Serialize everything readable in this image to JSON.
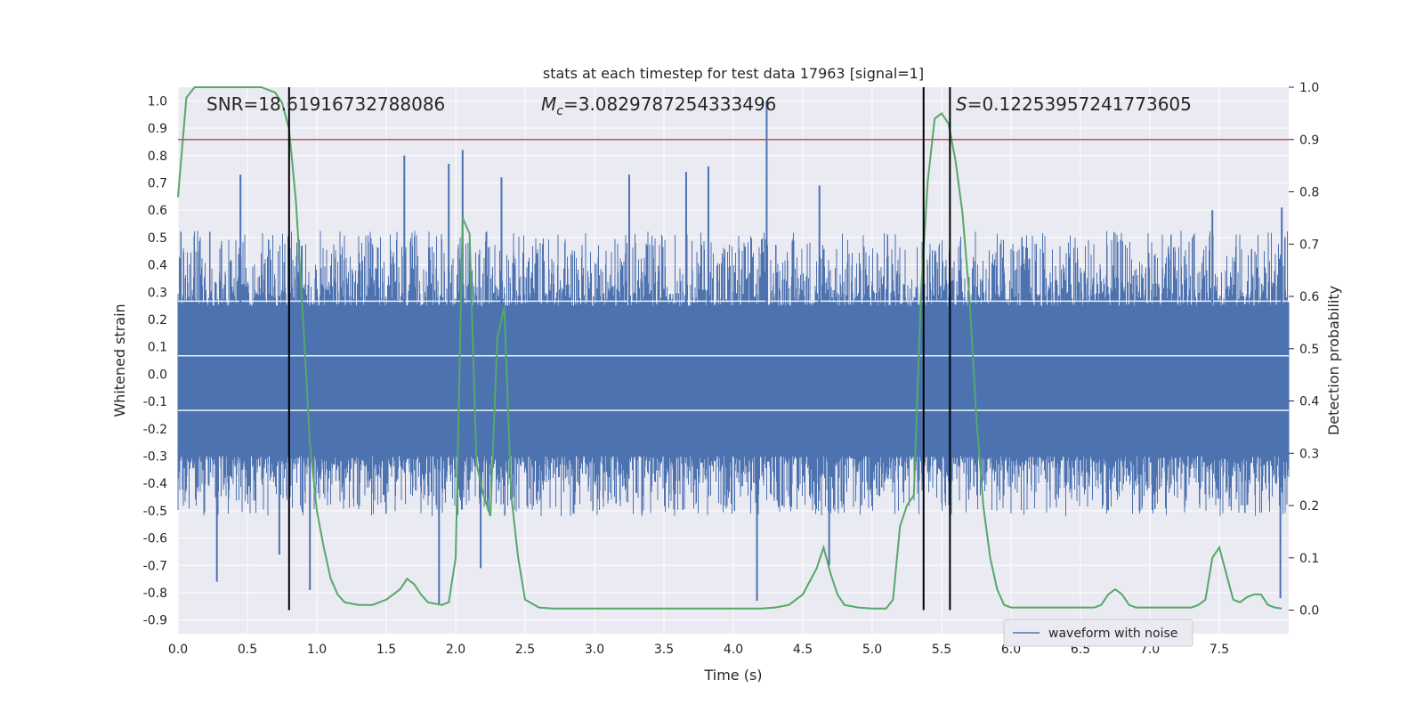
{
  "chart_data": {
    "type": "line",
    "title": "stats at each timestep for test data 17963 [signal=1]",
    "xlabel": "Time (s)",
    "ylabel_left": "Whitened strain",
    "ylabel_right": "Detection probability",
    "xlim": [
      0.0,
      8.0
    ],
    "ylim_left": [
      -0.95,
      1.05
    ],
    "ylim_right": [
      -0.045,
      1.0
    ],
    "x_ticks": [
      "0.0",
      "0.5",
      "1.0",
      "1.5",
      "2.0",
      "2.5",
      "3.0",
      "3.5",
      "4.0",
      "4.5",
      "5.0",
      "5.5",
      "6.0",
      "6.5",
      "7.0",
      "7.5"
    ],
    "y_ticks_left": [
      "1.0",
      "0.9",
      "0.8",
      "0.7",
      "0.6",
      "0.5",
      "0.4",
      "0.3",
      "0.2",
      "0.1",
      "0.0",
      "-0.1",
      "-0.2",
      "-0.3",
      "-0.4",
      "-0.5",
      "-0.6",
      "-0.7",
      "-0.8",
      "-0.9"
    ],
    "y_ticks_right": [
      "1.0",
      "0.9",
      "0.8",
      "0.7",
      "0.6",
      "0.5",
      "0.4",
      "0.3",
      "0.2",
      "0.1",
      "0.0"
    ],
    "annotations": {
      "snr": "SNR=18.61916732788086",
      "mc_symbol": "M",
      "mc_sub": "c",
      "mc_value": "=3.0829787254333496",
      "s_symbol": "S",
      "s_value": "=0.12253957241773605"
    },
    "legend": [
      {
        "label": "waveform with noise",
        "color": "#4c72b0"
      }
    ],
    "threshold": {
      "axis": "right",
      "value": 0.9,
      "color": "#c44e52"
    },
    "vertical_lines": [
      0.8,
      5.37,
      5.56
    ],
    "waveform": {
      "name": "waveform with noise",
      "color": "#4c72b0",
      "band": [
        -0.3,
        0.25
      ],
      "envelope": [
        -0.5,
        0.5
      ],
      "spikes": [
        {
          "x": 0.28,
          "y": -0.76
        },
        {
          "x": 0.45,
          "y": 0.73
        },
        {
          "x": 0.73,
          "y": -0.66
        },
        {
          "x": 0.95,
          "y": -0.79
        },
        {
          "x": 1.63,
          "y": 0.8
        },
        {
          "x": 1.88,
          "y": -0.84
        },
        {
          "x": 1.95,
          "y": 0.77
        },
        {
          "x": 2.05,
          "y": 0.82
        },
        {
          "x": 2.18,
          "y": -0.71
        },
        {
          "x": 2.33,
          "y": 0.72
        },
        {
          "x": 3.25,
          "y": 0.73
        },
        {
          "x": 3.66,
          "y": 0.74
        },
        {
          "x": 3.82,
          "y": 0.76
        },
        {
          "x": 4.17,
          "y": -0.83
        },
        {
          "x": 4.24,
          "y": 1.0
        },
        {
          "x": 4.62,
          "y": 0.69
        },
        {
          "x": 4.69,
          "y": -0.7
        },
        {
          "x": 7.45,
          "y": 0.6
        },
        {
          "x": 7.94,
          "y": -0.82
        },
        {
          "x": 7.95,
          "y": 0.61
        }
      ]
    },
    "probability": {
      "name": "detection probability",
      "color": "#55a868",
      "x": [
        0.0,
        0.06,
        0.12,
        0.2,
        0.3,
        0.4,
        0.5,
        0.6,
        0.7,
        0.75,
        0.8,
        0.85,
        0.9,
        0.95,
        1.0,
        1.05,
        1.1,
        1.15,
        1.2,
        1.3,
        1.4,
        1.45,
        1.5,
        1.55,
        1.6,
        1.65,
        1.7,
        1.75,
        1.8,
        1.9,
        1.95,
        2.0,
        2.05,
        2.1,
        2.15,
        2.2,
        2.25,
        2.3,
        2.35,
        2.4,
        2.45,
        2.5,
        2.6,
        2.7,
        2.8,
        3.0,
        3.2,
        3.4,
        3.6,
        3.8,
        4.0,
        4.2,
        4.3,
        4.4,
        4.5,
        4.6,
        4.65,
        4.7,
        4.75,
        4.8,
        4.9,
        5.0,
        5.1,
        5.15,
        5.2,
        5.25,
        5.3,
        5.35,
        5.4,
        5.45,
        5.5,
        5.55,
        5.6,
        5.65,
        5.7,
        5.75,
        5.8,
        5.85,
        5.9,
        5.95,
        6.0,
        6.1,
        6.2,
        6.3,
        6.4,
        6.5,
        6.6,
        6.65,
        6.7,
        6.75,
        6.8,
        6.85,
        6.9,
        7.0,
        7.1,
        7.2,
        7.3,
        7.35,
        7.4,
        7.45,
        7.5,
        7.55,
        7.6,
        7.65,
        7.7,
        7.75,
        7.8,
        7.85,
        7.9,
        7.95
      ],
      "y": [
        0.79,
        0.98,
        1.0,
        1.0,
        1.0,
        1.0,
        1.0,
        1.0,
        0.99,
        0.97,
        0.92,
        0.78,
        0.56,
        0.32,
        0.19,
        0.12,
        0.06,
        0.03,
        0.015,
        0.01,
        0.01,
        0.015,
        0.02,
        0.03,
        0.04,
        0.06,
        0.05,
        0.03,
        0.015,
        0.01,
        0.015,
        0.1,
        0.75,
        0.72,
        0.28,
        0.22,
        0.18,
        0.52,
        0.58,
        0.22,
        0.1,
        0.02,
        0.005,
        0.003,
        0.003,
        0.003,
        0.003,
        0.003,
        0.003,
        0.003,
        0.003,
        0.003,
        0.005,
        0.01,
        0.03,
        0.08,
        0.12,
        0.07,
        0.03,
        0.01,
        0.005,
        0.003,
        0.003,
        0.02,
        0.16,
        0.2,
        0.22,
        0.6,
        0.82,
        0.94,
        0.95,
        0.93,
        0.86,
        0.76,
        0.6,
        0.37,
        0.2,
        0.1,
        0.04,
        0.01,
        0.005,
        0.005,
        0.005,
        0.005,
        0.005,
        0.005,
        0.005,
        0.01,
        0.03,
        0.04,
        0.03,
        0.01,
        0.005,
        0.005,
        0.005,
        0.005,
        0.005,
        0.01,
        0.02,
        0.1,
        0.12,
        0.07,
        0.02,
        0.015,
        0.025,
        0.03,
        0.03,
        0.01,
        0.005,
        0.003
      ]
    }
  }
}
